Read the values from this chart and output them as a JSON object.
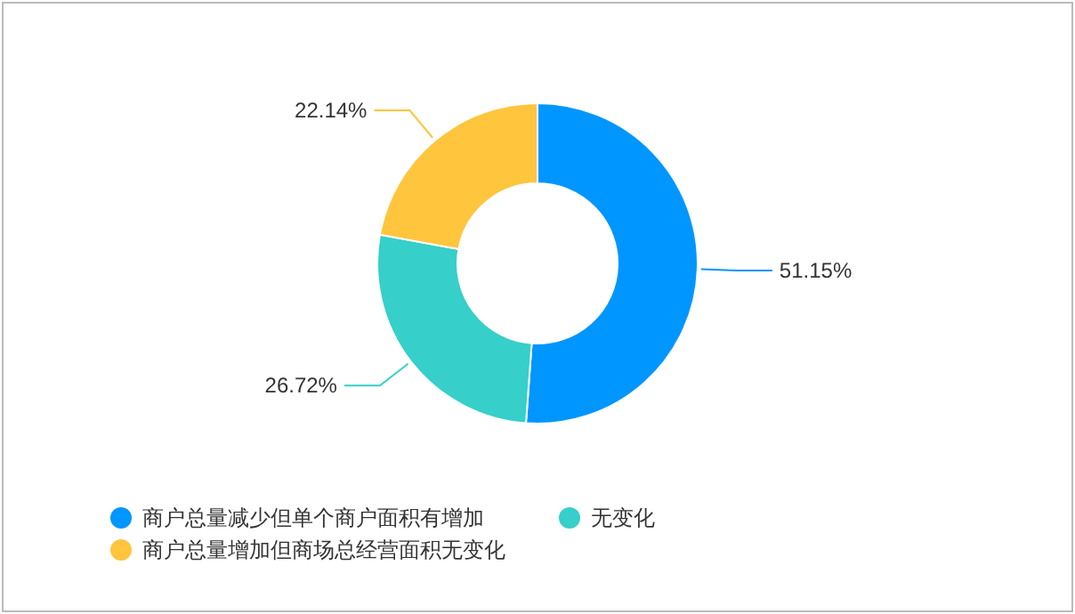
{
  "chart_data": {
    "type": "donut",
    "categories": [
      "商户总量减少但单个商户面积有增加",
      "无变化",
      "商户总量增加但商场总经营面积无变化"
    ],
    "values": [
      51.15,
      26.72,
      22.14
    ],
    "colors": [
      "#0096ff",
      "#36cfc9",
      "#ffc53d"
    ],
    "value_labels": [
      "51.15%",
      "26.72%",
      "22.14%"
    ],
    "legend": "bottom left"
  }
}
